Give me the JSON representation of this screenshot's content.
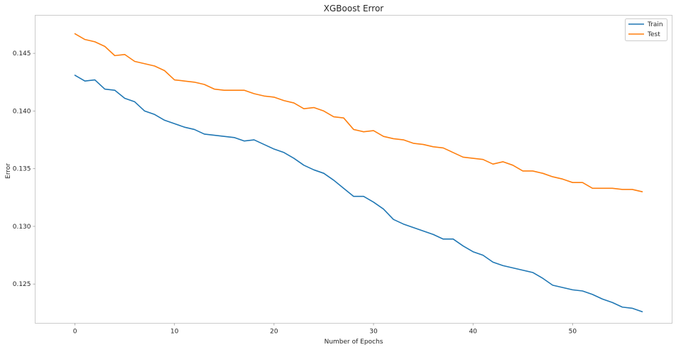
{
  "chart_data": {
    "type": "line",
    "title": "XGBoost Error",
    "xlabel": "Number of Epochs",
    "ylabel": "Error",
    "xlim": [
      -4,
      60
    ],
    "ylim": [
      0.1216,
      0.1483
    ],
    "xticks": [
      0,
      10,
      20,
      30,
      40,
      50
    ],
    "yticks": [
      0.125,
      0.13,
      0.135,
      0.14,
      0.145
    ],
    "ytick_labels": [
      "0.125",
      "0.130",
      "0.135",
      "0.140",
      "0.145"
    ],
    "grid": false,
    "legend_position": "top-right",
    "series": [
      {
        "name": "Train",
        "color": "#1f77b4",
        "values": [
          0.1431,
          0.1426,
          0.1427,
          0.1419,
          0.1418,
          0.1411,
          0.1408,
          0.14,
          0.1397,
          0.1392,
          0.1389,
          0.1386,
          0.1384,
          0.138,
          0.1379,
          0.1378,
          0.1377,
          0.1374,
          0.1375,
          0.1371,
          0.1367,
          0.1364,
          0.1359,
          0.1353,
          0.1349,
          0.1346,
          0.134,
          0.1333,
          0.1326,
          0.1326,
          0.1321,
          0.1315,
          0.1306,
          0.1302,
          0.1299,
          0.1296,
          0.1293,
          0.1289,
          0.1289,
          0.1283,
          0.1278,
          0.1275,
          0.1269,
          0.1266,
          0.1264,
          0.1262,
          0.126,
          0.1255,
          0.1249,
          0.1247,
          0.1245,
          0.1244,
          0.1241,
          0.1237,
          0.1234,
          0.123,
          0.1229,
          0.1226
        ]
      },
      {
        "name": "Test",
        "color": "#ff7f0e",
        "values": [
          0.1467,
          0.1462,
          0.146,
          0.1456,
          0.1448,
          0.1449,
          0.1443,
          0.1441,
          0.1439,
          0.1435,
          0.1427,
          0.1426,
          0.1425,
          0.1423,
          0.1419,
          0.1418,
          0.1418,
          0.1418,
          0.1415,
          0.1413,
          0.1412,
          0.1409,
          0.1407,
          0.1402,
          0.1403,
          0.14,
          0.1395,
          0.1394,
          0.1384,
          0.1382,
          0.1383,
          0.1378,
          0.1376,
          0.1375,
          0.1372,
          0.1371,
          0.1369,
          0.1368,
          0.1364,
          0.136,
          0.1359,
          0.1358,
          0.1354,
          0.1356,
          0.1353,
          0.1348,
          0.1348,
          0.1346,
          0.1343,
          0.1341,
          0.1338,
          0.1338,
          0.1333,
          0.1333,
          0.1333,
          0.1332,
          0.1332,
          0.133
        ]
      }
    ]
  }
}
